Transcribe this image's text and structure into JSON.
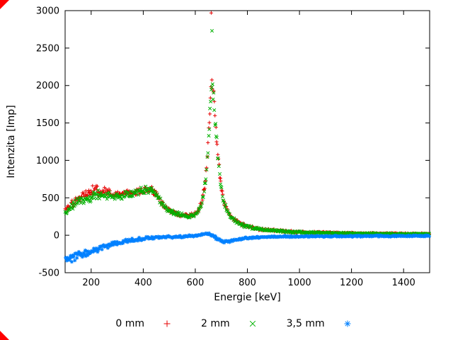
{
  "figure": {
    "background": "#ffffff",
    "corner_marker_color": "#ff0000"
  },
  "chart_data": {
    "type": "scatter",
    "title": "",
    "xlabel": "Energie [keV]",
    "ylabel": "Intenzita [Imp]",
    "xlim": [
      100,
      1500
    ],
    "ylim": [
      -500,
      3000
    ],
    "xticks": [
      200,
      400,
      600,
      800,
      1000,
      1200,
      1400
    ],
    "yticks": [
      -500,
      0,
      500,
      1000,
      1500,
      2000,
      2500,
      3000
    ],
    "grid": false,
    "legend_position": "bottom-center",
    "peak_energy_keV": 662,
    "series": [
      {
        "name": "0 mm",
        "color": "#e60000",
        "marker": "plus",
        "samples": 560,
        "seed": 101,
        "control_points": [
          [
            100,
            330,
            70
          ],
          [
            125,
            420,
            75
          ],
          [
            150,
            500,
            80
          ],
          [
            175,
            555,
            85
          ],
          [
            200,
            590,
            90
          ],
          [
            225,
            605,
            90
          ],
          [
            250,
            580,
            75
          ],
          [
            275,
            555,
            65
          ],
          [
            300,
            545,
            60
          ],
          [
            330,
            555,
            60
          ],
          [
            360,
            575,
            60
          ],
          [
            390,
            600,
            60
          ],
          [
            415,
            620,
            60
          ],
          [
            435,
            615,
            60
          ],
          [
            455,
            520,
            55
          ],
          [
            475,
            420,
            45
          ],
          [
            495,
            350,
            40
          ],
          [
            520,
            300,
            35
          ],
          [
            545,
            275,
            32
          ],
          [
            570,
            258,
            30
          ],
          [
            595,
            275,
            30
          ],
          [
            612,
            330,
            35
          ],
          [
            628,
            480,
            55
          ],
          [
            640,
            780,
            80
          ],
          [
            650,
            1250,
            110
          ],
          [
            657,
            1750,
            130
          ],
          [
            663,
            2060,
            140
          ],
          [
            669,
            1950,
            130
          ],
          [
            677,
            1550,
            115
          ],
          [
            686,
            1120,
            95
          ],
          [
            695,
            760,
            75
          ],
          [
            705,
            520,
            55
          ],
          [
            718,
            360,
            45
          ],
          [
            732,
            275,
            38
          ],
          [
            750,
            205,
            32
          ],
          [
            775,
            150,
            28
          ],
          [
            805,
            115,
            25
          ],
          [
            845,
            85,
            22
          ],
          [
            900,
            65,
            20
          ],
          [
            960,
            50,
            18
          ],
          [
            1030,
            40,
            16
          ],
          [
            1120,
            32,
            14
          ],
          [
            1220,
            26,
            13
          ],
          [
            1320,
            22,
            12
          ],
          [
            1420,
            19,
            12
          ],
          [
            1500,
            17,
            12
          ]
        ],
        "outliers": [
          [
            661,
            2970
          ]
        ]
      },
      {
        "name": "2 mm",
        "color": "#00b000",
        "marker": "cross",
        "samples": 560,
        "seed": 202,
        "control_points": [
          [
            100,
            300,
            60
          ],
          [
            125,
            380,
            65
          ],
          [
            150,
            440,
            70
          ],
          [
            175,
            485,
            72
          ],
          [
            200,
            515,
            75
          ],
          [
            225,
            530,
            75
          ],
          [
            250,
            525,
            68
          ],
          [
            275,
            520,
            62
          ],
          [
            300,
            520,
            58
          ],
          [
            330,
            540,
            58
          ],
          [
            360,
            565,
            58
          ],
          [
            390,
            590,
            58
          ],
          [
            415,
            610,
            58
          ],
          [
            435,
            605,
            58
          ],
          [
            455,
            510,
            52
          ],
          [
            475,
            410,
            44
          ],
          [
            495,
            342,
            38
          ],
          [
            520,
            295,
            34
          ],
          [
            545,
            270,
            31
          ],
          [
            570,
            253,
            29
          ],
          [
            595,
            270,
            29
          ],
          [
            612,
            322,
            34
          ],
          [
            628,
            465,
            53
          ],
          [
            640,
            750,
            78
          ],
          [
            650,
            1200,
            105
          ],
          [
            657,
            1700,
            125
          ],
          [
            663,
            1990,
            135
          ],
          [
            669,
            1880,
            125
          ],
          [
            677,
            1500,
            110
          ],
          [
            686,
            1080,
            92
          ],
          [
            695,
            730,
            72
          ],
          [
            705,
            500,
            53
          ],
          [
            718,
            348,
            43
          ],
          [
            732,
            265,
            36
          ],
          [
            750,
            198,
            30
          ],
          [
            775,
            145,
            26
          ],
          [
            805,
            110,
            23
          ],
          [
            845,
            82,
            21
          ],
          [
            900,
            62,
            19
          ],
          [
            960,
            48,
            17
          ],
          [
            1030,
            38,
            15
          ],
          [
            1120,
            30,
            13
          ],
          [
            1220,
            25,
            12
          ],
          [
            1320,
            21,
            11
          ],
          [
            1420,
            18,
            11
          ],
          [
            1500,
            16,
            11
          ]
        ],
        "outliers": [
          [
            664,
            2730
          ]
        ]
      },
      {
        "name": "3,5 mm",
        "color": "#0080ff",
        "marker": "asterisk",
        "samples": 520,
        "seed": 303,
        "control_points": [
          [
            100,
            -310,
            70
          ],
          [
            130,
            -295,
            62
          ],
          [
            160,
            -265,
            55
          ],
          [
            200,
            -220,
            48
          ],
          [
            240,
            -168,
            42
          ],
          [
            280,
            -122,
            36
          ],
          [
            320,
            -88,
            30
          ],
          [
            360,
            -60,
            26
          ],
          [
            400,
            -44,
            23
          ],
          [
            450,
            -30,
            20
          ],
          [
            500,
            -24,
            18
          ],
          [
            550,
            -18,
            17
          ],
          [
            600,
            -6,
            17
          ],
          [
            625,
            14,
            18
          ],
          [
            648,
            24,
            20
          ],
          [
            672,
            -18,
            20
          ],
          [
            695,
            -68,
            22
          ],
          [
            715,
            -88,
            22
          ],
          [
            740,
            -70,
            20
          ],
          [
            775,
            -46,
            18
          ],
          [
            820,
            -30,
            15
          ],
          [
            900,
            -20,
            13
          ],
          [
            1000,
            -15,
            12
          ],
          [
            1150,
            -12,
            11
          ],
          [
            1300,
            -10,
            11
          ],
          [
            1500,
            -8,
            11
          ]
        ],
        "outliers": []
      }
    ]
  }
}
